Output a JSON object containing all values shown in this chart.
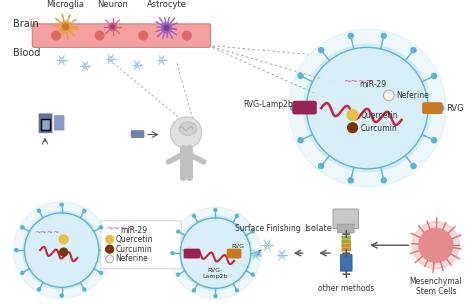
{
  "bg_color": "#ffffff",
  "labels": {
    "microglia": "Microglia",
    "neuron": "Neuron",
    "astrocyte": "Astrocyte",
    "brain": "Brain",
    "blood": "Blood",
    "rvg_lamp2b": "RVG-Lamp2b",
    "rvg_lamp2b_short": "RVG-\nLamp2b",
    "mir29": "miR-29",
    "neferine": "Neferine",
    "quercetin": "Quercetin",
    "curcumin": "Curcumin",
    "rvg": "RVG",
    "surface_finishing": "Surface Finishing",
    "isolate": "Isolate",
    "other_methods": "other methods",
    "mesenchymal": "Mesenchymal\nStem Cells"
  },
  "colors": {
    "brain_bar": "#f4a0a0",
    "barrier_border": "#d08080",
    "nucleus_color": "#e06868",
    "microglia_color": "#e8a040",
    "microglia_nuc": "#c87830",
    "neuron_color": "#d06080",
    "neuron_nuc": "#a04060",
    "astrocyte_color": "#a060c0",
    "astrocyte_nuc": "#7040a0",
    "vesicle_outer": "#5ab4d4",
    "vesicle_inner": "#d8f0f8",
    "vesicle_mid": "#b0ddf0",
    "rvg_lamp2b_color": "#9b2257",
    "rvg_color": "#c87820",
    "rna_color": "#cc2244",
    "mir29_color": "#d060a0",
    "quercetin_color": "#e8c040",
    "curcumin_color": "#7b3503",
    "neferine_color": "#f0f0f0",
    "neferine_border": "#aaaaaa",
    "snowflake_color": "#a0c8e0",
    "arrow_color": "#555555",
    "text_color": "#333333",
    "dashed_line": "#999999",
    "human_color": "#e0e0e0",
    "human_border": "#c0c0c0",
    "brain_fill": "#d8d8d8",
    "pill_color": "#7080b0",
    "phone_color": "#6070a0",
    "phone_screen": "#8aaabf",
    "centrifuge_color": "#c8c8c8",
    "tube_blue": "#4070b0",
    "tube_colors": [
      "#d09020",
      "#c09828",
      "#b0a030",
      "#a0b040"
    ],
    "stem_cell_color": "#e07070"
  }
}
